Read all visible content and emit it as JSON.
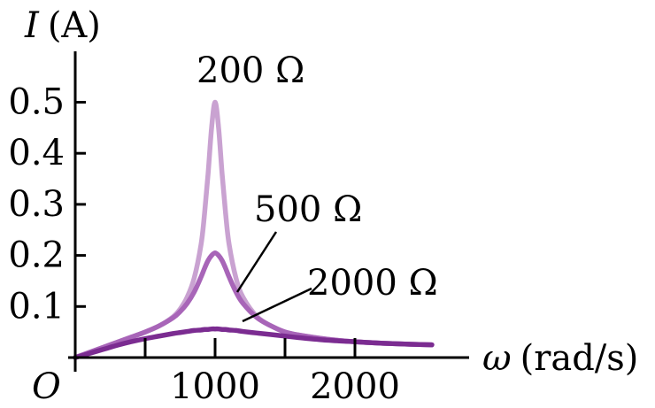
{
  "chart_data": {
    "type": "line",
    "title": "",
    "xlabel_var": "ω",
    "xlabel_unit": "(rad/s)",
    "ylabel_var": "I",
    "ylabel_unit": "(A)",
    "origin_label": "O",
    "xlim": [
      0,
      2550
    ],
    "ylim": [
      0,
      0.55
    ],
    "xticks_minor": [
      500,
      1500
    ],
    "xticks_labeled": [
      1000,
      2000
    ],
    "xtick_labels": [
      "1000",
      "2000"
    ],
    "yticks": [
      0.1,
      0.2,
      0.3,
      0.4,
      0.5
    ],
    "ytick_labels": [
      "0.1",
      "0.2",
      "0.3",
      "0.4",
      "0.5"
    ],
    "grid": false,
    "legend": "none",
    "x": [
      0,
      100,
      200,
      300,
      400,
      500,
      600,
      700,
      750,
      800,
      850,
      900,
      925,
      950,
      975,
      1000,
      1025,
      1050,
      1075,
      1100,
      1150,
      1200,
      1300,
      1400,
      1500,
      1600,
      1800,
      2000,
      2200,
      2400,
      2550
    ],
    "series": [
      {
        "name": "200 Ω",
        "color": "#c9a2d1",
        "values": [
          0.0,
          0.01,
          0.02,
          0.03,
          0.04,
          0.05,
          0.062,
          0.08,
          0.095,
          0.118,
          0.155,
          0.222,
          0.283,
          0.36,
          0.45,
          0.5,
          0.45,
          0.36,
          0.283,
          0.222,
          0.155,
          0.118,
          0.08,
          0.062,
          0.05,
          0.044,
          0.036,
          0.031,
          0.028,
          0.026,
          0.025
        ]
      },
      {
        "name": "500 Ω",
        "color": "#a865b8",
        "values": [
          0.0,
          0.01,
          0.02,
          0.03,
          0.04,
          0.05,
          0.062,
          0.078,
          0.09,
          0.106,
          0.128,
          0.158,
          0.175,
          0.19,
          0.2,
          0.205,
          0.2,
          0.19,
          0.175,
          0.158,
          0.128,
          0.106,
          0.078,
          0.062,
          0.05,
          0.044,
          0.036,
          0.031,
          0.028,
          0.026,
          0.025
        ]
      },
      {
        "name": "2000 Ω",
        "color": "#7b2c91",
        "values": [
          0.0,
          0.008,
          0.016,
          0.024,
          0.031,
          0.037,
          0.042,
          0.047,
          0.049,
          0.051,
          0.053,
          0.054,
          0.055,
          0.055,
          0.056,
          0.056,
          0.056,
          0.055,
          0.055,
          0.054,
          0.053,
          0.051,
          0.048,
          0.045,
          0.042,
          0.039,
          0.034,
          0.031,
          0.028,
          0.026,
          0.025
        ]
      }
    ],
    "series_labels": [
      "200 Ω",
      "500 Ω",
      "2000 Ω"
    ]
  }
}
